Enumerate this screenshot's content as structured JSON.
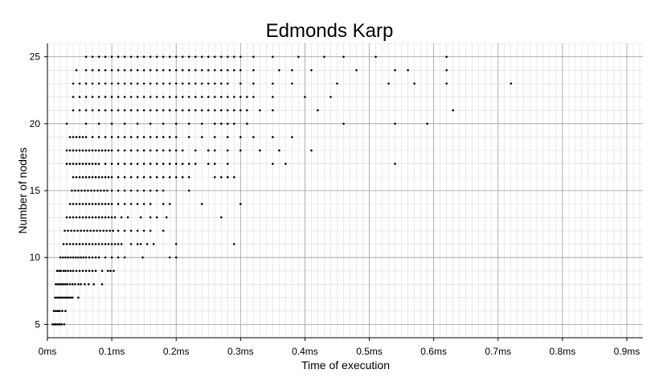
{
  "chart_data": {
    "type": "scatter",
    "title": "Edmonds Karp",
    "xlabel": "Time of execution",
    "ylabel": "Number of nodes",
    "xlim": [
      0,
      0.925
    ],
    "ylim": [
      4,
      26
    ],
    "xticks": [
      0,
      0.1,
      0.2,
      0.3,
      0.4,
      0.5,
      0.6,
      0.7,
      0.8,
      0.9
    ],
    "xtick_labels": [
      "0ms",
      "0.1ms",
      "0.2ms",
      "0.3ms",
      "0.4ms",
      "0.5ms",
      "0.6ms",
      "0.7ms",
      "0.8ms",
      "0.9ms"
    ],
    "yticks": [
      5,
      10,
      15,
      20,
      25
    ],
    "ytick_labels": [
      "5",
      "10",
      "15",
      "20",
      "25"
    ],
    "grid": true,
    "minor_grid": true,
    "point_color": "#000000",
    "points": [
      {
        "n": 5,
        "t": [
          0.008,
          0.011,
          0.013,
          0.016,
          0.019,
          0.022,
          0.026
        ]
      },
      {
        "n": 6,
        "t": [
          0.01,
          0.013,
          0.016,
          0.019,
          0.023,
          0.028
        ]
      },
      {
        "n": 7,
        "t": [
          0.012,
          0.015,
          0.018,
          0.021,
          0.024,
          0.027,
          0.03,
          0.033,
          0.036,
          0.039,
          0.048
        ]
      },
      {
        "n": 8,
        "t": [
          0.013,
          0.016,
          0.019,
          0.022,
          0.025,
          0.028,
          0.031,
          0.035,
          0.039,
          0.043,
          0.048,
          0.052,
          0.058,
          0.064,
          0.072,
          0.085
        ]
      },
      {
        "n": 9,
        "t": [
          0.015,
          0.018,
          0.021,
          0.025,
          0.028,
          0.032,
          0.036,
          0.04,
          0.045,
          0.05,
          0.055,
          0.06,
          0.065,
          0.07,
          0.075,
          0.085,
          0.094,
          0.098,
          0.103
        ]
      },
      {
        "n": 10,
        "t": [
          0.02,
          0.024,
          0.028,
          0.032,
          0.036,
          0.04,
          0.044,
          0.048,
          0.052,
          0.056,
          0.06,
          0.065,
          0.07,
          0.075,
          0.08,
          0.09,
          0.1,
          0.11,
          0.12,
          0.148,
          0.19,
          0.2
        ]
      },
      {
        "n": 11,
        "t": [
          0.025,
          0.03,
          0.035,
          0.04,
          0.045,
          0.05,
          0.055,
          0.06,
          0.065,
          0.07,
          0.075,
          0.08,
          0.085,
          0.09,
          0.095,
          0.1,
          0.105,
          0.11,
          0.115,
          0.13,
          0.14,
          0.145,
          0.155,
          0.165,
          0.2,
          0.29
        ]
      },
      {
        "n": 12,
        "t": [
          0.027,
          0.032,
          0.037,
          0.042,
          0.047,
          0.052,
          0.057,
          0.062,
          0.067,
          0.072,
          0.077,
          0.082,
          0.087,
          0.092,
          0.097,
          0.102,
          0.11,
          0.12,
          0.13,
          0.14,
          0.15,
          0.16,
          0.18
        ]
      },
      {
        "n": 13,
        "t": [
          0.03,
          0.035,
          0.04,
          0.045,
          0.05,
          0.055,
          0.06,
          0.065,
          0.07,
          0.075,
          0.08,
          0.085,
          0.09,
          0.095,
          0.1,
          0.105,
          0.115,
          0.125,
          0.145,
          0.16,
          0.17,
          0.185,
          0.27
        ]
      },
      {
        "n": 14,
        "t": [
          0.035,
          0.04,
          0.045,
          0.05,
          0.055,
          0.06,
          0.065,
          0.07,
          0.075,
          0.08,
          0.085,
          0.09,
          0.095,
          0.1,
          0.11,
          0.12,
          0.13,
          0.14,
          0.15,
          0.16,
          0.18,
          0.19,
          0.24,
          0.3
        ]
      },
      {
        "n": 15,
        "t": [
          0.038,
          0.043,
          0.048,
          0.053,
          0.058,
          0.063,
          0.068,
          0.073,
          0.078,
          0.083,
          0.088,
          0.093,
          0.1,
          0.11,
          0.12,
          0.13,
          0.14,
          0.15,
          0.16,
          0.17,
          0.18,
          0.22
        ]
      },
      {
        "n": 16,
        "t": [
          0.04,
          0.045,
          0.05,
          0.055,
          0.06,
          0.065,
          0.07,
          0.075,
          0.08,
          0.085,
          0.09,
          0.095,
          0.1,
          0.11,
          0.12,
          0.13,
          0.14,
          0.15,
          0.16,
          0.17,
          0.18,
          0.19,
          0.2,
          0.21,
          0.22,
          0.26,
          0.27,
          0.28,
          0.29
        ]
      },
      {
        "n": 17,
        "t": [
          0.03,
          0.035,
          0.04,
          0.045,
          0.05,
          0.055,
          0.06,
          0.065,
          0.07,
          0.075,
          0.08,
          0.09,
          0.1,
          0.11,
          0.12,
          0.13,
          0.14,
          0.15,
          0.16,
          0.17,
          0.18,
          0.19,
          0.2,
          0.21,
          0.22,
          0.23,
          0.25,
          0.26,
          0.28,
          0.35,
          0.37,
          0.54
        ]
      },
      {
        "n": 18,
        "t": [
          0.03,
          0.035,
          0.04,
          0.045,
          0.05,
          0.055,
          0.06,
          0.065,
          0.07,
          0.075,
          0.08,
          0.085,
          0.09,
          0.095,
          0.1,
          0.11,
          0.12,
          0.13,
          0.14,
          0.15,
          0.16,
          0.17,
          0.18,
          0.19,
          0.2,
          0.21,
          0.23,
          0.25,
          0.26,
          0.28,
          0.3,
          0.33,
          0.36,
          0.41
        ]
      },
      {
        "n": 19,
        "t": [
          0.035,
          0.04,
          0.045,
          0.05,
          0.055,
          0.06,
          0.07,
          0.08,
          0.09,
          0.1,
          0.11,
          0.12,
          0.13,
          0.14,
          0.15,
          0.16,
          0.17,
          0.18,
          0.19,
          0.2,
          0.22,
          0.24,
          0.26,
          0.28,
          0.3,
          0.32,
          0.35,
          0.38
        ]
      },
      {
        "n": 20,
        "t": [
          0.03,
          0.06,
          0.08,
          0.1,
          0.12,
          0.14,
          0.16,
          0.18,
          0.2,
          0.22,
          0.24,
          0.26,
          0.27,
          0.28,
          0.29,
          0.31,
          0.46,
          0.54,
          0.59
        ]
      },
      {
        "n": 21,
        "t": [
          0.04,
          0.05,
          0.06,
          0.07,
          0.08,
          0.09,
          0.1,
          0.11,
          0.12,
          0.13,
          0.14,
          0.15,
          0.16,
          0.17,
          0.18,
          0.19,
          0.2,
          0.21,
          0.22,
          0.23,
          0.24,
          0.25,
          0.26,
          0.27,
          0.28,
          0.29,
          0.3,
          0.31,
          0.33,
          0.35,
          0.42,
          0.63
        ]
      },
      {
        "n": 22,
        "t": [
          0.04,
          0.05,
          0.06,
          0.07,
          0.08,
          0.09,
          0.1,
          0.11,
          0.12,
          0.13,
          0.14,
          0.15,
          0.16,
          0.17,
          0.18,
          0.19,
          0.2,
          0.21,
          0.22,
          0.23,
          0.24,
          0.25,
          0.26,
          0.27,
          0.28,
          0.29,
          0.3,
          0.31,
          0.32,
          0.35,
          0.4,
          0.44
        ]
      },
      {
        "n": 23,
        "t": [
          0.04,
          0.05,
          0.06,
          0.07,
          0.08,
          0.09,
          0.1,
          0.11,
          0.12,
          0.13,
          0.14,
          0.15,
          0.16,
          0.17,
          0.18,
          0.19,
          0.2,
          0.21,
          0.22,
          0.23,
          0.24,
          0.25,
          0.26,
          0.27,
          0.28,
          0.3,
          0.32,
          0.35,
          0.38,
          0.45,
          0.53,
          0.57,
          0.62,
          0.72
        ]
      },
      {
        "n": 24,
        "t": [
          0.045,
          0.06,
          0.07,
          0.08,
          0.09,
          0.1,
          0.11,
          0.12,
          0.13,
          0.14,
          0.15,
          0.16,
          0.17,
          0.18,
          0.19,
          0.2,
          0.21,
          0.22,
          0.23,
          0.24,
          0.25,
          0.26,
          0.27,
          0.28,
          0.29,
          0.3,
          0.32,
          0.36,
          0.38,
          0.41,
          0.48,
          0.54,
          0.56,
          0.62
        ]
      },
      {
        "n": 25,
        "t": [
          0.06,
          0.07,
          0.08,
          0.09,
          0.1,
          0.11,
          0.12,
          0.13,
          0.14,
          0.15,
          0.16,
          0.17,
          0.18,
          0.19,
          0.2,
          0.21,
          0.22,
          0.23,
          0.24,
          0.25,
          0.26,
          0.27,
          0.28,
          0.29,
          0.3,
          0.32,
          0.35,
          0.39,
          0.43,
          0.46,
          0.51,
          0.62
        ]
      }
    ]
  }
}
